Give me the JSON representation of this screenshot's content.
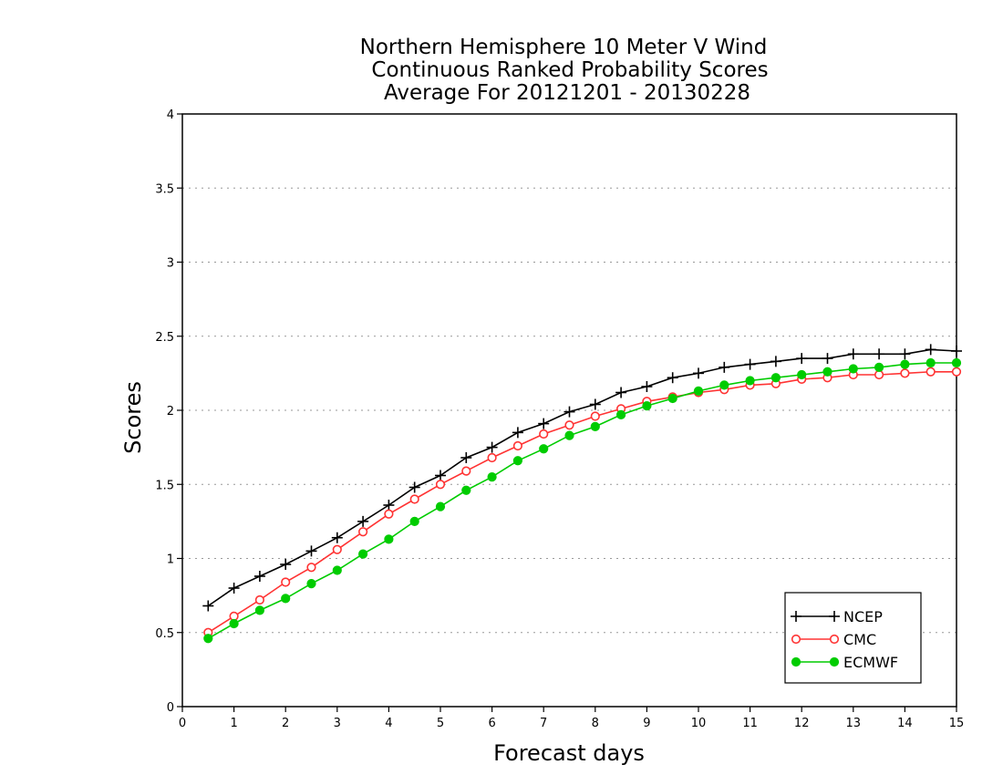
{
  "chart_data": {
    "type": "line",
    "title_lines": [
      "Northern Hemisphere 10 Meter V Wind",
      "Continuous Ranked Probability Scores",
      "Average For 20121201 - 20130228"
    ],
    "xlabel": "Forecast days",
    "ylabel": "Scores",
    "xlim": [
      0,
      15
    ],
    "ylim": [
      0,
      4
    ],
    "x_ticks": [
      0,
      1,
      2,
      3,
      4,
      5,
      6,
      7,
      8,
      9,
      10,
      11,
      12,
      13,
      14,
      15
    ],
    "x_tick_labels": [
      "0",
      "1",
      "2",
      "3",
      "4",
      "5",
      "6",
      "7",
      "8",
      "9",
      "10",
      "11",
      "12",
      "13",
      "14",
      "15"
    ],
    "y_ticks": [
      0,
      0.5,
      1,
      1.5,
      2,
      2.5,
      3,
      3.5,
      4
    ],
    "y_tick_labels": [
      "0",
      "0.5",
      "1",
      "1.5",
      "2",
      "2.5",
      "3",
      "3.5",
      "4"
    ],
    "grid": "horizontal dotted",
    "legend_position": "bottom-right",
    "x": [
      0.5,
      1.0,
      1.5,
      2.0,
      2.5,
      3.0,
      3.5,
      4.0,
      4.5,
      5.0,
      5.5,
      6.0,
      6.5,
      7.0,
      7.5,
      8.0,
      8.5,
      9.0,
      9.5,
      10.0,
      10.5,
      11.0,
      11.5,
      12.0,
      12.5,
      13.0,
      13.5,
      14.0,
      14.5,
      15.0
    ],
    "series": [
      {
        "name": "NCEP",
        "color": "#000000",
        "marker": "plus",
        "values": [
          0.68,
          0.8,
          0.88,
          0.96,
          1.05,
          1.14,
          1.25,
          1.36,
          1.48,
          1.56,
          1.68,
          1.75,
          1.85,
          1.91,
          1.99,
          2.04,
          2.12,
          2.16,
          2.22,
          2.25,
          2.29,
          2.31,
          2.33,
          2.35,
          2.35,
          2.38,
          2.38,
          2.38,
          2.41,
          2.4
        ]
      },
      {
        "name": "CMC",
        "color": "#ff3333",
        "marker": "open-circle",
        "values": [
          0.5,
          0.61,
          0.72,
          0.84,
          0.94,
          1.06,
          1.18,
          1.3,
          1.4,
          1.5,
          1.59,
          1.68,
          1.76,
          1.84,
          1.9,
          1.96,
          2.01,
          2.06,
          2.09,
          2.12,
          2.14,
          2.17,
          2.18,
          2.21,
          2.22,
          2.24,
          2.24,
          2.25,
          2.26,
          2.26
        ]
      },
      {
        "name": "ECMWF",
        "color": "#00cc00",
        "marker": "filled-circle",
        "values": [
          0.46,
          0.56,
          0.65,
          0.73,
          0.83,
          0.92,
          1.03,
          1.13,
          1.25,
          1.35,
          1.46,
          1.55,
          1.66,
          1.74,
          1.83,
          1.89,
          1.97,
          2.03,
          2.08,
          2.13,
          2.17,
          2.2,
          2.22,
          2.24,
          2.26,
          2.28,
          2.29,
          2.31,
          2.32,
          2.32
        ]
      }
    ]
  }
}
